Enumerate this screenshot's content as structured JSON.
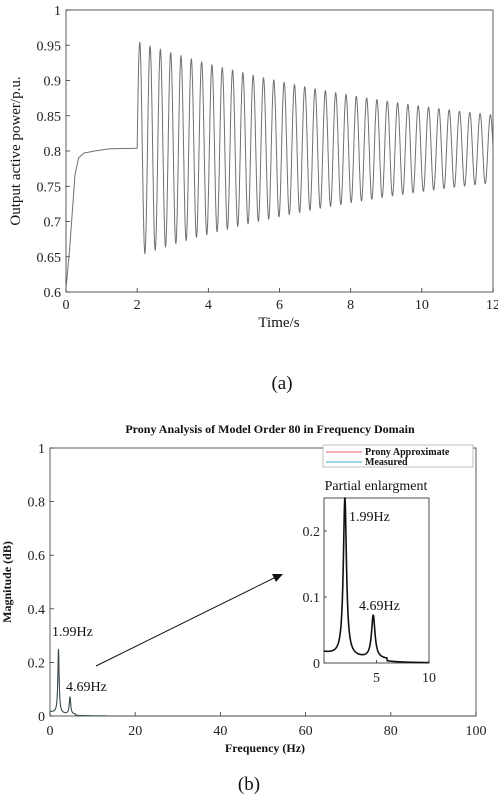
{
  "chart_data": [
    {
      "type": "line",
      "caption": "(a)",
      "xlabel": "Time/s",
      "ylabel": "Output active power/p.u.",
      "xlim": [
        0,
        12
      ],
      "ylim": [
        0.6,
        1
      ],
      "xticks": [
        "0",
        "2",
        "4",
        "6",
        "8",
        "10",
        "12"
      ],
      "yticks": [
        "0.6",
        "0.65",
        "0.7",
        "0.75",
        "0.8",
        "0.85",
        "0.9",
        "0.95",
        "1"
      ],
      "grid": false,
      "line_color": "#707070",
      "pre_disturbance": [
        [
          0,
          0.605
        ],
        [
          0.1,
          0.66
        ],
        [
          0.25,
          0.765
        ],
        [
          0.35,
          0.79
        ],
        [
          0.5,
          0.797
        ],
        [
          0.8,
          0.8
        ],
        [
          1.2,
          0.803
        ],
        [
          2.0,
          0.804
        ]
      ],
      "oscillation": {
        "start": 2.0,
        "frequency_hz": 3.45,
        "mean": 0.804,
        "first_peak": 0.955,
        "first_trough": 0.651,
        "final_peak": 0.851,
        "final_trough": 0.755
      }
    },
    {
      "type": "line",
      "caption": "(b)",
      "title": "Prony Analysis of Model Order 80 in Frequency Domain",
      "xlabel": "Frequency (Hz)",
      "ylabel": "Magnitude (dB)",
      "xlim": [
        0,
        100
      ],
      "ylim": [
        0,
        1
      ],
      "xticks": [
        "0",
        "20",
        "40",
        "60",
        "80",
        "100"
      ],
      "yticks": [
        "0",
        "0.2",
        "0.4",
        "0.6",
        "0.8",
        "1"
      ],
      "grid": false,
      "legend_position": "top-right",
      "series": [
        {
          "name": "Prony Approximate",
          "color": "#e06060"
        },
        {
          "name": "Measured",
          "color": "#38b0c8"
        }
      ],
      "peaks": [
        {
          "x": 1.99,
          "y": 0.24,
          "label": "1.99Hz"
        },
        {
          "x": 4.69,
          "y": 0.065,
          "label": "4.69Hz"
        }
      ],
      "inset": {
        "title": "Partial enlargment",
        "xlim": [
          0,
          10
        ],
        "ylim": [
          0,
          0.25
        ],
        "xticks": [
          "5",
          "10"
        ],
        "yticks": [
          "0",
          "0.1",
          "0.2"
        ]
      }
    }
  ]
}
